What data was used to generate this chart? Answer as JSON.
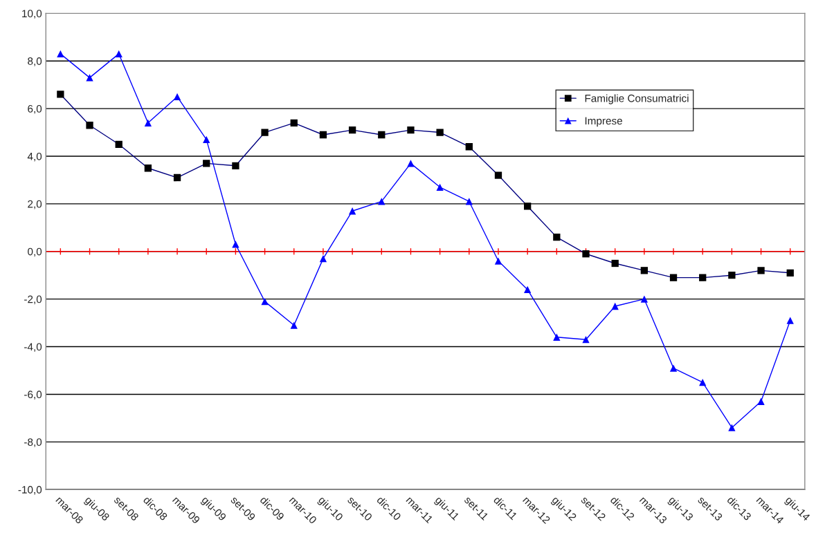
{
  "chart_data": {
    "type": "line",
    "categories": [
      "mar-08",
      "giu-08",
      "set-08",
      "dic-08",
      "mar-09",
      "giu-09",
      "set-09",
      "dic-09",
      "mar-10",
      "giu-10",
      "set-10",
      "dic-10",
      "mar-11",
      "giu-11",
      "set-11",
      "dic-11",
      "mar-12",
      "giu-12",
      "set-12",
      "dic-12",
      "mar-13",
      "giu-13",
      "set-13",
      "dic-13",
      "mar-14",
      "giu-14"
    ],
    "series": [
      {
        "name": "Famiglie Consumatrici",
        "color": "#000080",
        "marker": "square",
        "values": [
          6.6,
          5.3,
          4.5,
          3.5,
          3.1,
          3.7,
          3.6,
          5.0,
          5.4,
          4.9,
          5.1,
          4.9,
          5.1,
          5.0,
          4.4,
          3.2,
          1.9,
          0.6,
          -0.1,
          -0.5,
          -0.8,
          -1.1,
          -1.1,
          -1.0,
          -0.8,
          -0.9
        ]
      },
      {
        "name": "Imprese",
        "color": "#0000ff",
        "marker": "triangle",
        "values": [
          8.3,
          7.3,
          8.3,
          5.4,
          6.5,
          4.7,
          0.3,
          -2.1,
          -3.1,
          -0.3,
          1.7,
          2.1,
          3.7,
          2.7,
          2.1,
          -0.4,
          -1.6,
          -3.6,
          -3.7,
          -2.3,
          -2.0,
          -4.9,
          -5.5,
          -7.4,
          -6.3,
          -2.9
        ]
      }
    ],
    "ylim": [
      -10,
      10
    ],
    "yticks": [
      {
        "value": -10,
        "label": "-10,0"
      },
      {
        "value": -8,
        "label": "-8,0"
      },
      {
        "value": -6,
        "label": "-6,0"
      },
      {
        "value": -4,
        "label": "-4,0"
      },
      {
        "value": -2,
        "label": "-2,0"
      },
      {
        "value": 0,
        "label": "0,0"
      },
      {
        "value": 2,
        "label": "2,0"
      },
      {
        "value": 4,
        "label": "4,0"
      },
      {
        "value": 6,
        "label": "6,0"
      },
      {
        "value": 8,
        "label": "8,0"
      },
      {
        "value": 10,
        "label": "10,0"
      }
    ],
    "ref_lines": [
      {
        "axis": "y",
        "value": 0,
        "color": "#ff0000"
      }
    ],
    "grid": "y",
    "legend": "top right"
  }
}
